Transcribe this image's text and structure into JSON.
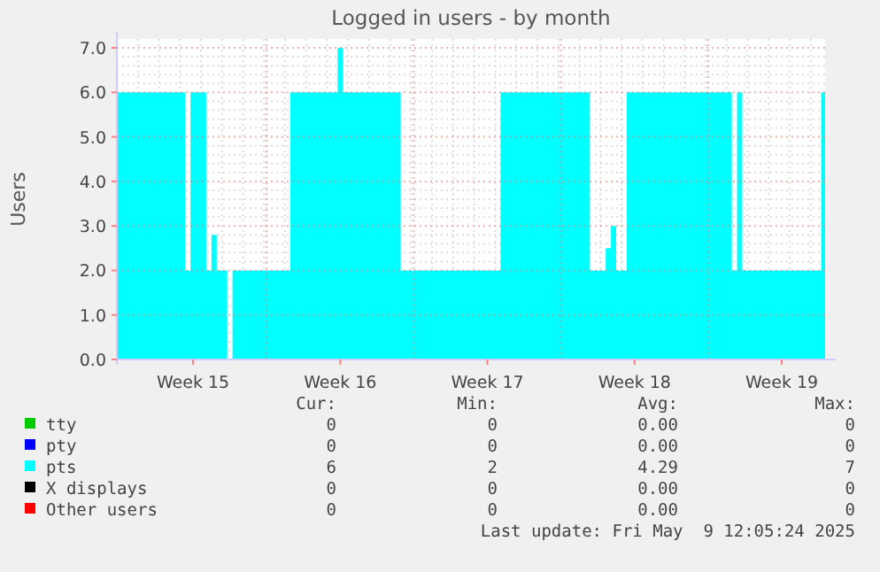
{
  "chart_data": {
    "type": "area",
    "title": "Logged in users - by month",
    "ylabel": "Users",
    "categories": [
      null,
      null,
      null,
      null,
      null,
      null,
      null,
      null,
      null,
      null,
      null,
      null,
      null,
      null,
      "Week 15",
      null,
      null,
      null,
      null,
      null,
      null,
      null,
      null,
      null,
      null,
      null,
      null,
      null,
      null,
      null,
      null,
      null,
      null,
      null,
      null,
      null,
      null,
      null,
      null,
      null,
      null,
      null,
      "Week 16",
      null,
      null,
      null,
      null,
      null,
      null,
      null,
      null,
      null,
      null,
      null,
      null,
      null,
      null,
      null,
      null,
      null,
      null,
      null,
      null,
      null,
      null,
      null,
      null,
      null,
      null,
      null,
      "Week 17",
      null,
      null,
      null,
      null,
      null,
      null,
      null,
      null,
      null,
      null,
      null,
      null,
      null,
      null,
      null,
      null,
      null,
      null,
      null,
      null,
      null,
      null,
      null,
      null,
      null,
      null,
      null,
      "Week 18",
      null,
      null,
      null,
      null,
      null,
      null,
      null,
      null,
      null,
      null,
      null,
      null,
      null,
      null,
      null,
      null,
      null,
      null,
      null,
      null,
      null,
      null,
      null,
      null,
      null,
      null,
      null,
      "Week 19",
      null,
      null,
      null,
      null,
      null,
      null,
      null,
      null
    ],
    "ylim": [
      0,
      7.2
    ],
    "yticks": [
      {
        "value": 0,
        "label": "0.0"
      },
      {
        "value": 1,
        "label": "1.0"
      },
      {
        "value": 2,
        "label": "2.0"
      },
      {
        "value": 3,
        "label": "3.0"
      },
      {
        "value": 4,
        "label": "4.0"
      },
      {
        "value": 5,
        "label": "5.0"
      },
      {
        "value": 6,
        "label": "6.0"
      },
      {
        "value": 7,
        "label": "7.0"
      }
    ],
    "grid": true,
    "legend": "bottom",
    "series": [
      {
        "name": "tty",
        "color": "#00cc00",
        "values": [
          null,
          null,
          null,
          null,
          null,
          null,
          null,
          null,
          null,
          null,
          null,
          null,
          null,
          null,
          null,
          null,
          null,
          null,
          null,
          null,
          null,
          null,
          null,
          null,
          null,
          null,
          null,
          null,
          null,
          null,
          null,
          null,
          null,
          null,
          null,
          null,
          null,
          null,
          null,
          null,
          null,
          null,
          null,
          null,
          null,
          null,
          null,
          null,
          null,
          null,
          null,
          null,
          null,
          null,
          null,
          null,
          null,
          null,
          null,
          null,
          null,
          null,
          null,
          null,
          null,
          null,
          null,
          null,
          null,
          null,
          null,
          null,
          null,
          null,
          null,
          null,
          null,
          null,
          null,
          null,
          null,
          null,
          null,
          null,
          null,
          null,
          null,
          null,
          null,
          null,
          null,
          null,
          null,
          null,
          null,
          null,
          null,
          null,
          null,
          null,
          null,
          null,
          null,
          null,
          null,
          null,
          null,
          null,
          null,
          null,
          null,
          null,
          null,
          null,
          null,
          null,
          null,
          null,
          null,
          null,
          null,
          null,
          null,
          null,
          null,
          null,
          null,
          null,
          null,
          null,
          null,
          null,
          null,
          null,
          null
        ]
      },
      {
        "name": "pty",
        "color": "#0000ff",
        "values": [
          null,
          null,
          null,
          null,
          null,
          null,
          null,
          null,
          null,
          null,
          null,
          null,
          null,
          null,
          null,
          null,
          null,
          null,
          null,
          null,
          null,
          null,
          null,
          null,
          null,
          null,
          null,
          null,
          null,
          null,
          null,
          null,
          null,
          null,
          null,
          null,
          null,
          null,
          null,
          null,
          null,
          null,
          null,
          null,
          null,
          null,
          null,
          null,
          null,
          null,
          null,
          null,
          null,
          null,
          null,
          null,
          null,
          null,
          null,
          null,
          null,
          null,
          null,
          null,
          null,
          null,
          null,
          null,
          null,
          null,
          null,
          null,
          null,
          null,
          null,
          null,
          null,
          null,
          null,
          null,
          null,
          null,
          null,
          null,
          null,
          null,
          null,
          null,
          null,
          null,
          null,
          null,
          null,
          null,
          null,
          null,
          null,
          null,
          null,
          null,
          null,
          null,
          null,
          null,
          null,
          null,
          null,
          null,
          null,
          null,
          null,
          null,
          null,
          null,
          null,
          null,
          null,
          null,
          null,
          null,
          null,
          null,
          null,
          null,
          null,
          null,
          null,
          null,
          null,
          null,
          null,
          null,
          null,
          null,
          null
        ]
      },
      {
        "name": "pts",
        "color": "#00ffff",
        "values": [
          6,
          6,
          6,
          6,
          6,
          6,
          6,
          6,
          6,
          6,
          6,
          6,
          6,
          2,
          6,
          6,
          6,
          2,
          2.8,
          2,
          2,
          0,
          2,
          2,
          2,
          2,
          2,
          2,
          2,
          2,
          2,
          2,
          2,
          6,
          6,
          6,
          6,
          6,
          6,
          6,
          6,
          6,
          7,
          6,
          6,
          6,
          6,
          6,
          6,
          6,
          6,
          6,
          6,
          6,
          2,
          2,
          2,
          2,
          2,
          2,
          2,
          2,
          2,
          2,
          2,
          2,
          2,
          2,
          2,
          2,
          2,
          2,
          2,
          6,
          6,
          6,
          6,
          6,
          6,
          6,
          6,
          6,
          6,
          6,
          6,
          6,
          6,
          6,
          6,
          6,
          2,
          2,
          2,
          2.5,
          3,
          2,
          2,
          6,
          6,
          6,
          6,
          6,
          6,
          6,
          6,
          6,
          6,
          6,
          6,
          6,
          6,
          6,
          6,
          6,
          6,
          6,
          6,
          2,
          6,
          2,
          2,
          2,
          2,
          2,
          2,
          2,
          2,
          2,
          2,
          2,
          2,
          2,
          2,
          2,
          6
        ]
      },
      {
        "name": "X displays",
        "color": "#000000",
        "values": [
          null,
          null,
          null,
          null,
          null,
          null,
          null,
          null,
          null,
          null,
          null,
          null,
          null,
          null,
          null,
          null,
          null,
          null,
          null,
          null,
          null,
          null,
          null,
          null,
          null,
          null,
          null,
          null,
          null,
          null,
          null,
          null,
          null,
          null,
          null,
          null,
          null,
          null,
          null,
          null,
          null,
          null,
          null,
          null,
          null,
          null,
          null,
          null,
          null,
          null,
          null,
          null,
          null,
          null,
          null,
          null,
          null,
          null,
          null,
          null,
          null,
          null,
          null,
          null,
          null,
          null,
          null,
          null,
          null,
          null,
          null,
          null,
          null,
          null,
          null,
          null,
          null,
          null,
          null,
          null,
          null,
          null,
          null,
          null,
          null,
          null,
          null,
          null,
          null,
          null,
          null,
          null,
          null,
          null,
          null,
          null,
          null,
          null,
          null,
          null,
          null,
          null,
          null,
          null,
          null,
          null,
          null,
          null,
          null,
          null,
          null,
          null,
          null,
          null,
          null,
          null,
          null,
          null,
          null,
          null,
          null,
          null,
          null,
          null,
          null,
          null,
          null,
          null,
          null,
          null,
          null,
          null,
          null,
          null,
          null
        ]
      },
      {
        "name": "Other users",
        "color": "#ff0000",
        "values": [
          null,
          null,
          null,
          null,
          null,
          null,
          null,
          null,
          null,
          null,
          null,
          null,
          null,
          null,
          null,
          null,
          null,
          null,
          null,
          null,
          null,
          null,
          null,
          null,
          null,
          null,
          null,
          null,
          null,
          null,
          null,
          null,
          null,
          null,
          null,
          null,
          null,
          null,
          null,
          null,
          null,
          null,
          null,
          null,
          null,
          null,
          null,
          null,
          null,
          null,
          null,
          null,
          null,
          null,
          null,
          null,
          null,
          null,
          null,
          null,
          null,
          null,
          null,
          null,
          null,
          null,
          null,
          null,
          null,
          null,
          null,
          null,
          null,
          null,
          null,
          null,
          null,
          null,
          null,
          null,
          null,
          null,
          null,
          null,
          null,
          null,
          null,
          null,
          null,
          null,
          null,
          null,
          null,
          null,
          null,
          null,
          null,
          null,
          null,
          null,
          null,
          null,
          null,
          null,
          null,
          null,
          null,
          null,
          null,
          null,
          null,
          null,
          null,
          null,
          null,
          null,
          null,
          null,
          null,
          null,
          null,
          null,
          null,
          null,
          null,
          null,
          null,
          null,
          null,
          null,
          null,
          null,
          null,
          null,
          null
        ]
      }
    ],
    "annotations": [
      "Cur:",
      "Min:",
      "Avg:",
      "Max:",
      "0",
      "0",
      "0.00",
      "0",
      "0",
      "0",
      "0.00",
      "0",
      "6",
      "2",
      "4.29",
      "7",
      "0",
      "0",
      "0.00",
      "0",
      "0",
      "0",
      "0.00",
      "0",
      "Last update: Fri May  9 12:05:24 2025"
    ]
  }
}
